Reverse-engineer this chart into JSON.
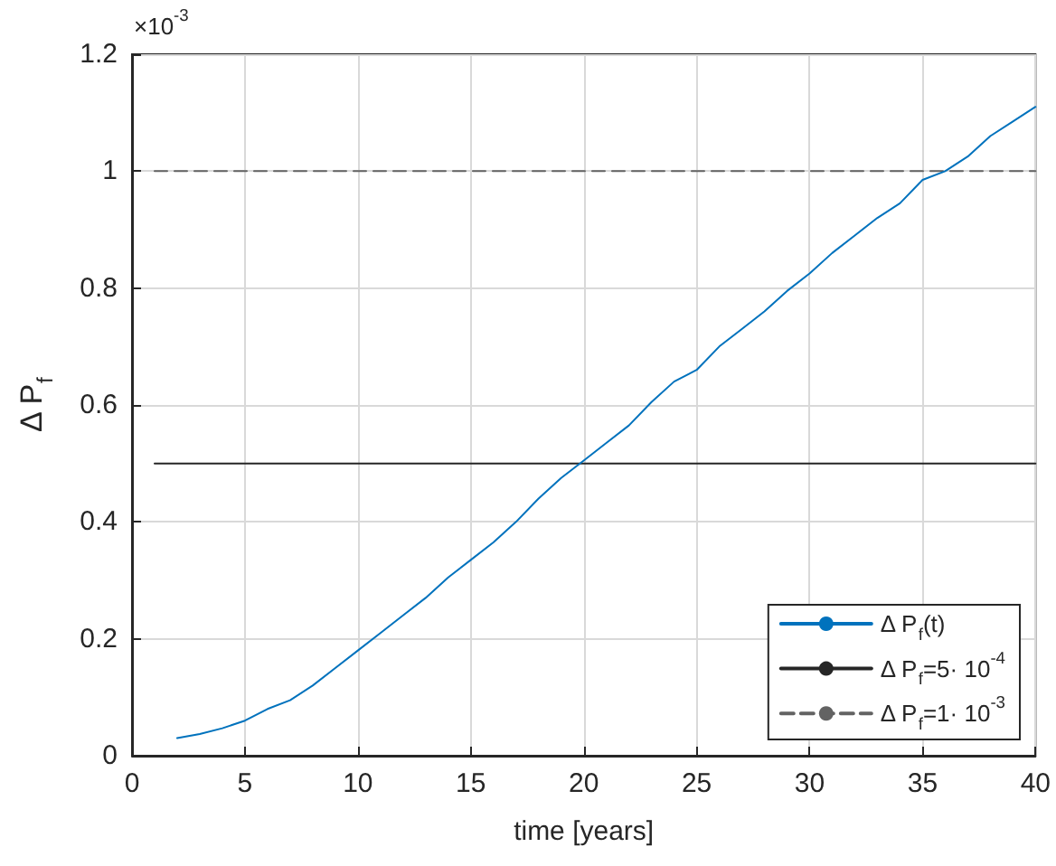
{
  "chart_data": {
    "type": "line",
    "xlabel": "time [years]",
    "ylabel": "Δ P$_{f}$",
    "annotations": [
      "×10$^{-3}$"
    ],
    "xlim": [
      0,
      40
    ],
    "xticks": [
      0,
      5,
      10,
      15,
      20,
      25,
      30,
      35,
      40
    ],
    "ylim": [
      0,
      1.2
    ],
    "yticks": [
      0,
      0.2,
      0.4,
      0.6,
      0.8,
      1,
      1.2
    ],
    "grid": true,
    "legend": "bottom right",
    "marker": "none",
    "series": [
      {
        "name": "Δ P$_{f}$(t)",
        "color": "#0072bd",
        "line_style": "solid",
        "x": [
          2,
          3,
          4,
          5,
          6,
          7,
          8,
          9,
          10,
          11,
          12,
          13,
          14,
          15,
          16,
          17,
          18,
          19,
          20,
          21,
          22,
          23,
          24,
          25,
          26,
          27,
          28,
          29,
          30,
          31,
          32,
          33,
          34,
          35,
          36,
          37,
          38,
          39,
          40
        ],
        "values": [
          0.03,
          0.037,
          0.047,
          0.06,
          0.08,
          0.095,
          0.12,
          0.15,
          0.18,
          0.21,
          0.24,
          0.27,
          0.305,
          0.335,
          0.365,
          0.4,
          0.44,
          0.475,
          0.505,
          0.535,
          0.565,
          0.605,
          0.64,
          0.66,
          0.7,
          0.73,
          0.76,
          0.795,
          0.825,
          0.86,
          0.89,
          0.92,
          0.945,
          0.985,
          1.0,
          1.025,
          1.06,
          1.085,
          1.11
        ]
      },
      {
        "name": "Δ P$_{f}$=5· 10$^{-4}$",
        "color": "#262626",
        "line_style": "solid",
        "x": [
          1,
          40
        ],
        "values": [
          0.5,
          0.5
        ]
      },
      {
        "name": "Δ P$_{f}$=1· 10$^{-3}$",
        "color": "#636363",
        "line_style": "dashed",
        "x": [
          1,
          40
        ],
        "values": [
          1,
          1
        ]
      }
    ]
  }
}
